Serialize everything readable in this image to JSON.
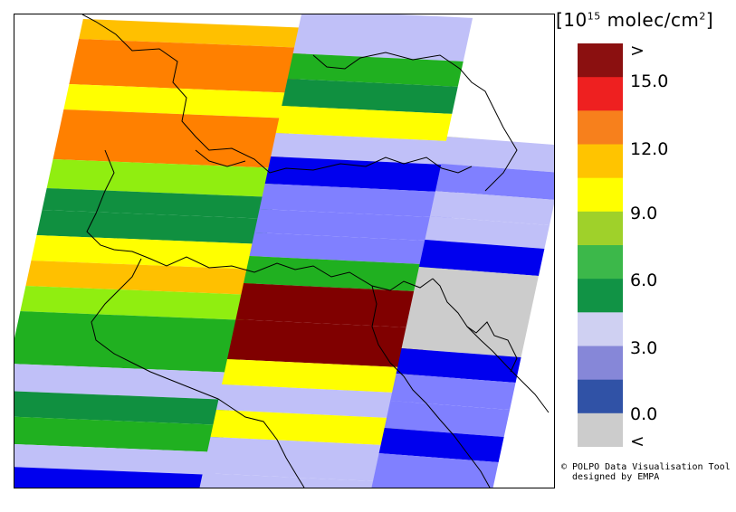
{
  "legend": {
    "title_prefix": "[10",
    "title_exp": "15",
    "title_suffix": " molec/cm",
    "title_sq": "2",
    "title_close": "]",
    "labels": [
      ">",
      "15.0",
      "12.0",
      "9.0",
      "6.0",
      "3.0",
      "0.0",
      "<"
    ],
    "colors": [
      "#8b1010",
      "#ee2020",
      "#f7801c",
      "#ffc400",
      "#ffff00",
      "#9fd12a",
      "#3cb84a",
      "#119345",
      "#cfd0f2",
      "#8687d8",
      "#3052a6",
      "#cccccc"
    ]
  },
  "credit": {
    "line1": "© POLPO Data Visualisation Tool",
    "line2": "designed by EMPA"
  },
  "palette": {
    "dark_red": "#800000",
    "orange": "#ff8000",
    "amber": "#ffc000",
    "yellow": "#ffff00",
    "lime": "#90ee10",
    "green": "#20b020",
    "dark_green": "#109040",
    "lavender": "#c0c0f8",
    "periwinkle": "#8080ff",
    "blue": "#0000ee",
    "gray": "#cccccc",
    "white": "#ffffff"
  }
}
